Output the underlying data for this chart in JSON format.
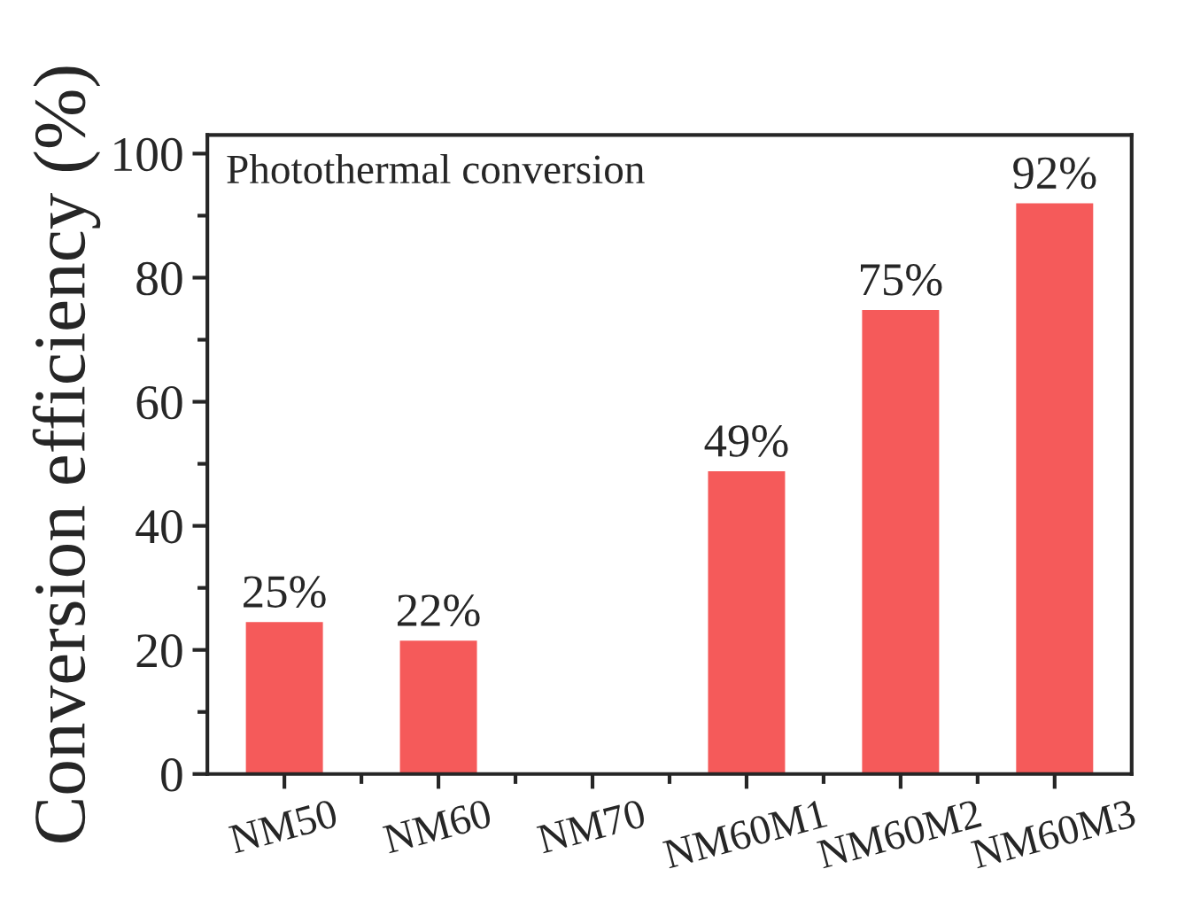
{
  "chart_data": {
    "type": "bar",
    "annotations": [
      "Photothermal conversion"
    ],
    "ylabel": "Conversion efficiency (%)",
    "categories": [
      "NM50",
      "NM60",
      "NM70",
      "NM60M1",
      "NM60M2",
      "NM60M3"
    ],
    "values": [
      24.5,
      21.5,
      null,
      48.8,
      74.8,
      92
    ],
    "value_labels": [
      "25%",
      "22%",
      null,
      "49%",
      "75%",
      "92%"
    ],
    "color": "#f55a5a",
    "ylim": [
      0,
      103
    ],
    "yticks": [
      0,
      20,
      40,
      60,
      80,
      100
    ],
    "grid": false
  }
}
